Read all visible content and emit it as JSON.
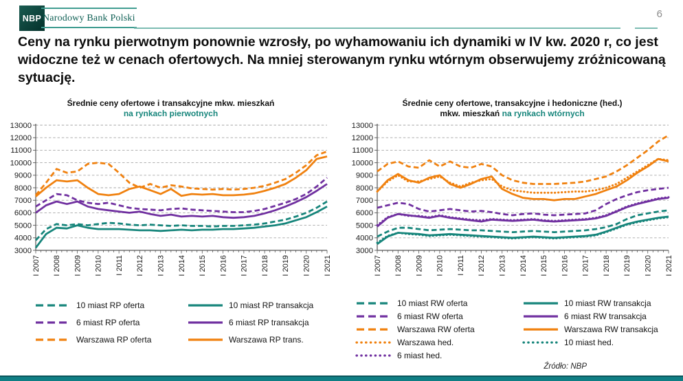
{
  "header": {
    "logo_text": "NBP",
    "bank_name": "Narodowy Bank Polski"
  },
  "page": {
    "number": "6",
    "source": "Źródło: NBP"
  },
  "title": "Ceny na rynku pierwotnym ponownie wzrosły, po wyhamowaniu ich dynamiki w IV kw. 2020 r, co jest widoczne też w cenach ofertowych. Na mniej sterowanym rynku wtórnym obserwujemy zróżnicowaną sytuację.",
  "colors": {
    "teal": "#16857B",
    "purple": "#7030A0",
    "orange": "#F0810F",
    "accent": "#16857B"
  },
  "chart_data": [
    {
      "type": "line",
      "title_lines": [
        {
          "black": "Średnie ceny ofertowe i transakcyjne mkw. mieszkań",
          "teal": ""
        },
        {
          "black": "",
          "teal": "na rynkach pierwotnych"
        }
      ],
      "ylim": [
        3000,
        13000
      ],
      "ytick_step": 1000,
      "x_start": 2007,
      "x_step": 0.5,
      "x_end": 2021,
      "x_tick_labels": [
        "I 2007",
        "I 2008",
        "I 2009",
        "I 2010",
        "I 2011",
        "I 2012",
        "I 2013",
        "I 2014",
        "I 2015",
        "I 2016",
        "I 2017",
        "I 2018",
        "I 2019",
        "I 2020",
        "I 2021"
      ],
      "grid": "dashed-horizontal",
      "legend_position": "below",
      "series": [
        {
          "name": "10 miast RP oferta",
          "color": "teal",
          "style": "dashed",
          "col": 1,
          "values": [
            3800,
            4700,
            5100,
            5000,
            5100,
            5000,
            5100,
            5200,
            5150,
            5050,
            5000,
            5050,
            5000,
            4950,
            5000,
            4950,
            4950,
            4900,
            4950,
            4950,
            5000,
            5050,
            5150,
            5300,
            5450,
            5700,
            6000,
            6400,
            6900
          ]
        },
        {
          "name": "6 miast RP oferta",
          "color": "purple",
          "style": "dashed",
          "col": 1,
          "values": [
            6500,
            7000,
            7500,
            7400,
            7000,
            6800,
            6700,
            6800,
            6600,
            6400,
            6300,
            6250,
            6200,
            6300,
            6350,
            6250,
            6200,
            6150,
            6100,
            6050,
            6050,
            6150,
            6300,
            6550,
            6800,
            7100,
            7500,
            8100,
            8800
          ]
        },
        {
          "name": "Warszawa RP oferta",
          "color": "orange",
          "style": "dashed",
          "col": 1,
          "values": [
            7400,
            8400,
            9500,
            9200,
            9300,
            9900,
            10000,
            9900,
            9200,
            8400,
            8000,
            8300,
            8000,
            8200,
            8100,
            7950,
            7900,
            7850,
            7900,
            7850,
            7900,
            8000,
            8150,
            8400,
            8700,
            9200,
            9800,
            10600,
            10900
          ]
        },
        {
          "name": "10 miast RP transakcja",
          "color": "teal",
          "style": "solid",
          "col": 2,
          "values": [
            3200,
            4300,
            4800,
            4750,
            5000,
            4800,
            4700,
            4700,
            4700,
            4650,
            4600,
            4600,
            4550,
            4600,
            4650,
            4600,
            4650,
            4650,
            4700,
            4700,
            4750,
            4800,
            4900,
            5000,
            5150,
            5400,
            5650,
            6050,
            6500
          ]
        },
        {
          "name": "6 miast RP transakcja",
          "color": "purple",
          "style": "solid",
          "col": 2,
          "values": [
            6000,
            6600,
            6900,
            6700,
            6900,
            6500,
            6300,
            6200,
            6100,
            6000,
            6100,
            5900,
            5750,
            5850,
            5700,
            5750,
            5700,
            5750,
            5650,
            5600,
            5650,
            5750,
            5950,
            6200,
            6500,
            6850,
            7250,
            7750,
            8300
          ]
        },
        {
          "name": "Warszawa RP trans.",
          "color": "orange",
          "style": "solid",
          "col": 2,
          "values": [
            7300,
            8000,
            8600,
            8500,
            8600,
            8000,
            7500,
            7400,
            7500,
            7900,
            8100,
            7800,
            7500,
            7900,
            7350,
            7500,
            7450,
            7500,
            7400,
            7400,
            7450,
            7550,
            7750,
            8000,
            8300,
            8800,
            9400,
            10300,
            10500
          ]
        }
      ]
    },
    {
      "type": "line",
      "title_lines": [
        {
          "black": "Średnie ceny ofertowe, transakcyjne i hedoniczne (hed.)",
          "teal": ""
        },
        {
          "black": "mkw. mieszkań",
          "teal": "na rynkach wtórnych"
        }
      ],
      "ylim": [
        3000,
        13000
      ],
      "ytick_step": 1000,
      "x_start": 2007,
      "x_step": 0.5,
      "x_end": 2021,
      "x_tick_labels": [
        "I 2007",
        "I 2008",
        "I 2009",
        "I 2010",
        "I 2011",
        "I 2012",
        "I 2013",
        "I 2014",
        "I 2015",
        "I 2016",
        "I 2017",
        "I 2018",
        "I 2019",
        "I 2020",
        "I 2021"
      ],
      "grid": "dashed-horizontal",
      "legend_position": "below",
      "series": [
        {
          "name": "10 miast RW oferta",
          "color": "teal",
          "style": "dashed",
          "col": 1,
          "values": [
            4100,
            4500,
            4800,
            4800,
            4700,
            4600,
            4650,
            4700,
            4650,
            4600,
            4600,
            4550,
            4500,
            4450,
            4500,
            4550,
            4500,
            4450,
            4500,
            4550,
            4600,
            4700,
            4850,
            5100,
            5500,
            5800,
            5950,
            6100,
            6200
          ]
        },
        {
          "name": "6 miast RW oferta",
          "color": "purple",
          "style": "dashed",
          "col": 1,
          "values": [
            6400,
            6600,
            6800,
            6700,
            6300,
            6100,
            6200,
            6300,
            6200,
            6100,
            6150,
            6050,
            5900,
            5800,
            5900,
            5950,
            5850,
            5800,
            5850,
            5900,
            5950,
            6200,
            6700,
            7100,
            7400,
            7650,
            7800,
            7900,
            8000
          ]
        },
        {
          "name": "Warszawa RW oferta",
          "color": "orange",
          "style": "dashed",
          "col": 1,
          "values": [
            9300,
            9900,
            10100,
            9700,
            9600,
            10200,
            9700,
            10100,
            9700,
            9600,
            9900,
            9700,
            9000,
            8600,
            8400,
            8300,
            8300,
            8300,
            8350,
            8400,
            8500,
            8700,
            8900,
            9300,
            9800,
            10400,
            11000,
            11700,
            12200
          ]
        },
        {
          "name": "Warszawa hed.",
          "color": "orange",
          "style": "dotted",
          "col": 1,
          "values": [
            7700,
            8500,
            9000,
            8500,
            8500,
            8700,
            8900,
            8400,
            8100,
            8400,
            8600,
            8700,
            8100,
            7800,
            7700,
            7600,
            7600,
            7600,
            7650,
            7700,
            7700,
            7800,
            8000,
            8300,
            8800,
            9300,
            9800,
            10300,
            10200
          ]
        },
        {
          "name": "6 miast hed.",
          "color": "purple",
          "style": "dotted",
          "col": 1,
          "values": [
            5000,
            5650,
            5900,
            5750,
            5750,
            5650,
            5800,
            5650,
            5550,
            5450,
            5400,
            5500,
            5450,
            5400,
            5450,
            5500,
            5400,
            5350,
            5400,
            5450,
            5500,
            5600,
            5800,
            6150,
            6500,
            6750,
            6950,
            7150,
            7250
          ]
        },
        {
          "name": "10 miast RW transakcja",
          "color": "teal",
          "style": "solid",
          "col": 2,
          "values": [
            3500,
            4100,
            4400,
            4350,
            4300,
            4200,
            4250,
            4300,
            4250,
            4200,
            4150,
            4100,
            4050,
            4000,
            4050,
            4100,
            4050,
            4000,
            4050,
            4100,
            4150,
            4250,
            4500,
            4800,
            5100,
            5300,
            5450,
            5600,
            5700
          ]
        },
        {
          "name": "6 miast RW transakcja",
          "color": "purple",
          "style": "solid",
          "col": 2,
          "values": [
            4900,
            5600,
            5900,
            5800,
            5700,
            5600,
            5750,
            5600,
            5500,
            5400,
            5300,
            5450,
            5400,
            5350,
            5400,
            5450,
            5350,
            5300,
            5350,
            5400,
            5450,
            5550,
            5750,
            6100,
            6450,
            6700,
            6900,
            7100,
            7200
          ]
        },
        {
          "name": "Warszawa RW transakcja",
          "color": "orange",
          "style": "solid",
          "col": 2,
          "values": [
            7700,
            8600,
            9100,
            8600,
            8400,
            8800,
            9000,
            8300,
            8000,
            8300,
            8700,
            8900,
            7900,
            7500,
            7200,
            7100,
            7100,
            7000,
            7100,
            7100,
            7300,
            7500,
            7800,
            8100,
            8600,
            9200,
            9700,
            10300,
            10100
          ]
        },
        {
          "name": "10 miast hed.",
          "color": "teal",
          "style": "dotted",
          "col": 2,
          "values": [
            3600,
            4150,
            4400,
            4300,
            4250,
            4150,
            4200,
            4250,
            4200,
            4150,
            4100,
            4050,
            4000,
            3950,
            4000,
            4050,
            4000,
            3950,
            4000,
            4050,
            4100,
            4200,
            4450,
            4750,
            5050,
            5250,
            5400,
            5550,
            5650
          ]
        }
      ]
    }
  ]
}
